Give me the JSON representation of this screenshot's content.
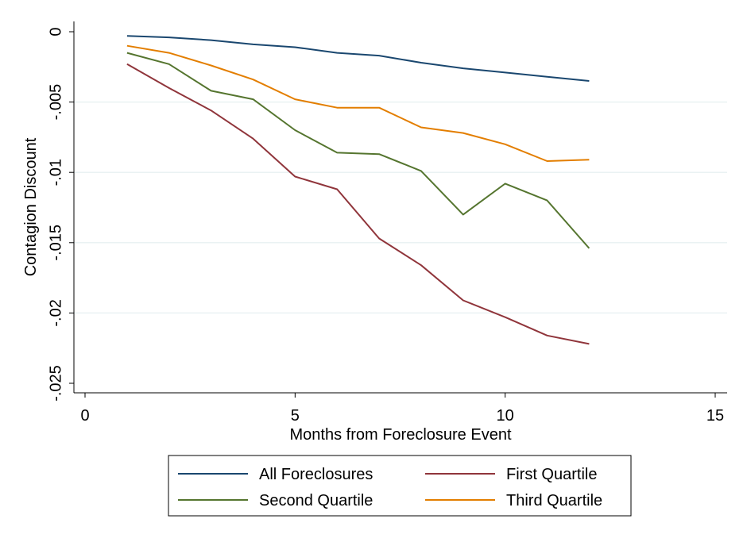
{
  "chart_data": {
    "type": "line",
    "title": "",
    "xlabel": "Months from Foreclosure Event",
    "ylabel": "Contagion Discount",
    "xlim": [
      0,
      15
    ],
    "ylim": [
      -0.025,
      0
    ],
    "x_ticks": [
      0,
      5,
      10,
      15
    ],
    "x_tick_labels": [
      "0",
      "5",
      "10",
      "15"
    ],
    "y_ticks": [
      0,
      -0.005,
      -0.01,
      -0.015,
      -0.02,
      -0.025
    ],
    "y_tick_labels": [
      "0",
      "-.005",
      "-.01",
      "-.015",
      "-.02",
      "-.025"
    ],
    "grid": "horizontal",
    "legend_position": "bottom",
    "x": [
      1,
      2,
      3,
      4,
      5,
      6,
      7,
      8,
      9,
      10,
      11,
      12
    ],
    "series": [
      {
        "name": "All Foreclosures",
        "color": "#1a476f",
        "values": [
          -0.0003,
          -0.0004,
          -0.0006,
          -0.0009,
          -0.0011,
          -0.0015,
          -0.0017,
          -0.0022,
          -0.0026,
          -0.0029,
          -0.0032,
          -0.0035
        ]
      },
      {
        "name": "First Quartile",
        "color": "#90353b",
        "values": [
          -0.0023,
          -0.004,
          -0.0056,
          -0.0076,
          -0.0103,
          -0.0112,
          -0.0147,
          -0.0166,
          -0.0191,
          -0.0203,
          -0.0216,
          -0.0222
        ]
      },
      {
        "name": "Second Quartile",
        "color": "#55752f",
        "values": [
          -0.0015,
          -0.0023,
          -0.0042,
          -0.0048,
          -0.007,
          -0.0086,
          -0.0087,
          -0.0099,
          -0.013,
          -0.0108,
          -0.012,
          -0.0154
        ]
      },
      {
        "name": "Third Quartile",
        "color": "#e37e00",
        "values": [
          -0.001,
          -0.0015,
          -0.0024,
          -0.0034,
          -0.0048,
          -0.0054,
          -0.0054,
          -0.0068,
          -0.0072,
          -0.008,
          -0.0092,
          -0.0091
        ]
      }
    ]
  }
}
